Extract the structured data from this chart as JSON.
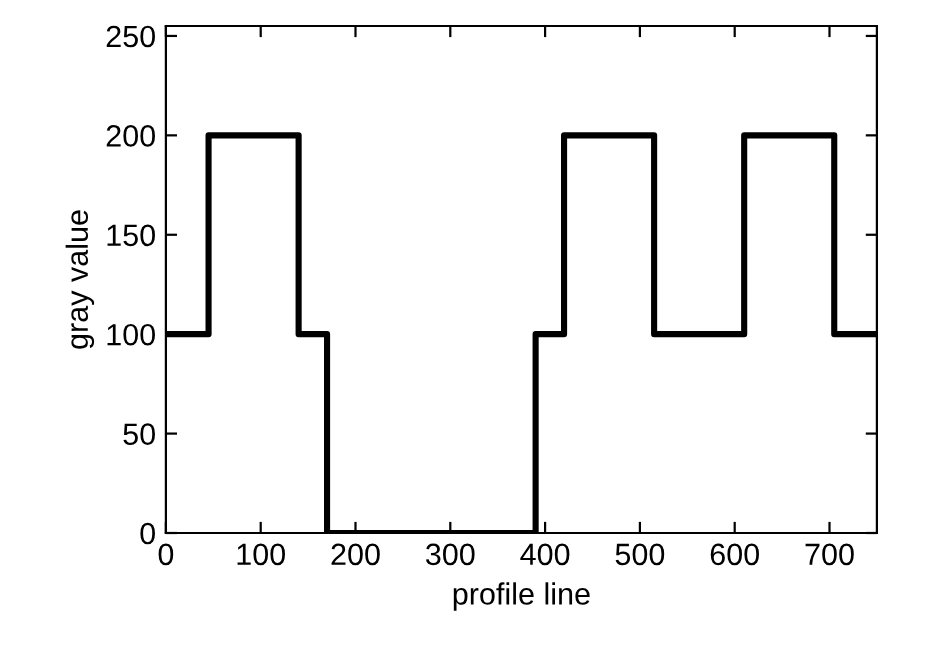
{
  "chart_data": {
    "type": "step",
    "xlabel": "profile line",
    "ylabel": "gray value",
    "x": [
      0,
      45,
      140,
      170,
      390,
      420,
      515,
      610,
      705,
      750
    ],
    "series": [
      {
        "color": "#000000",
        "values": [
          100,
          200,
          100,
          0,
          100,
          200,
          100,
          200,
          100,
          100
        ]
      }
    ],
    "xlim": [
      0,
      750
    ],
    "ylim": [
      0,
      255
    ],
    "xticks": [
      0,
      100,
      200,
      300,
      400,
      500,
      600,
      700
    ],
    "yticks": [
      0,
      50,
      100,
      150,
      200,
      250
    ],
    "grid": false,
    "marker": "none",
    "line_style": "solid"
  }
}
